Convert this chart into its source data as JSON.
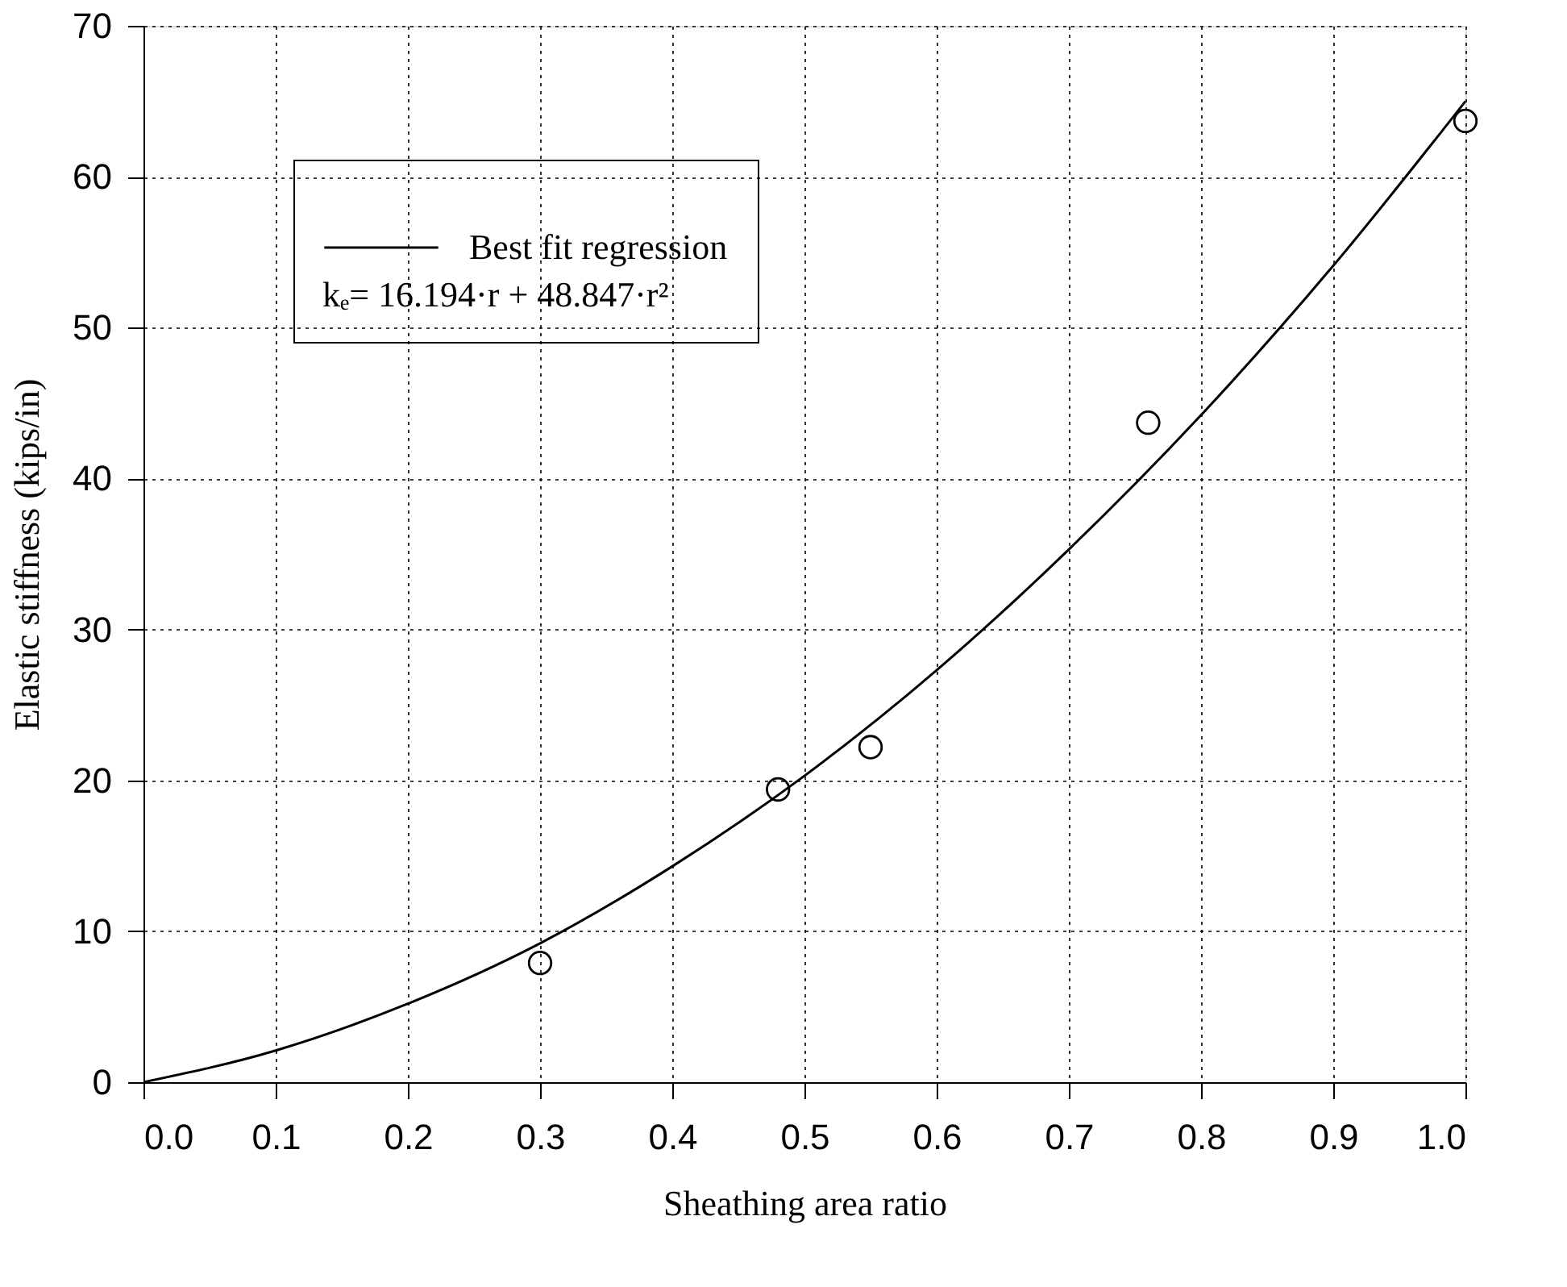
{
  "chart_data": {
    "type": "scatter",
    "xlabel": "Sheathing area ratio",
    "ylabel": "Elastic stiffness (kips/in)",
    "xlim": [
      0,
      1
    ],
    "ylim": [
      0,
      70
    ],
    "xticks": [
      {
        "value": 0,
        "label": "0.0"
      },
      {
        "value": 0.1,
        "label": "0.1"
      },
      {
        "value": 0.2,
        "label": "0.2"
      },
      {
        "value": 0.3,
        "label": "0.3"
      },
      {
        "value": 0.4,
        "label": "0.4"
      },
      {
        "value": 0.5,
        "label": "0.5"
      },
      {
        "value": 0.6,
        "label": "0.6"
      },
      {
        "value": 0.7,
        "label": "0.7"
      },
      {
        "value": 0.8,
        "label": "0.8"
      },
      {
        "value": 0.9,
        "label": "0.9"
      },
      {
        "value": 1,
        "label": "1.0"
      }
    ],
    "yticks": [
      0,
      10,
      20,
      30,
      40,
      50,
      60,
      70
    ],
    "grid": true,
    "legend": "top left",
    "annotations": [
      "kₑ= 16.194·r + 48.847·r²"
    ],
    "series": [
      {
        "name": "Best fit regression",
        "type": "line",
        "color": "#000000",
        "marker": "none",
        "line_style": "solid",
        "x": [
          0,
          0.1,
          0.2,
          0.3,
          0.4,
          0.5,
          0.6,
          0.7,
          0.8,
          0.9,
          1.0
        ],
        "values": [
          0,
          2.1,
          5.2,
          9.2,
          14.3,
          20.3,
          27.3,
          35.3,
          44.2,
          54.1,
          65.0
        ]
      },
      {
        "color": "#000000",
        "marker": "circle",
        "x": [
          0.3,
          0.48,
          0.55,
          0.76,
          1.0
        ],
        "values": [
          7.9,
          19.4,
          22.2,
          43.7,
          63.7
        ]
      }
    ]
  }
}
